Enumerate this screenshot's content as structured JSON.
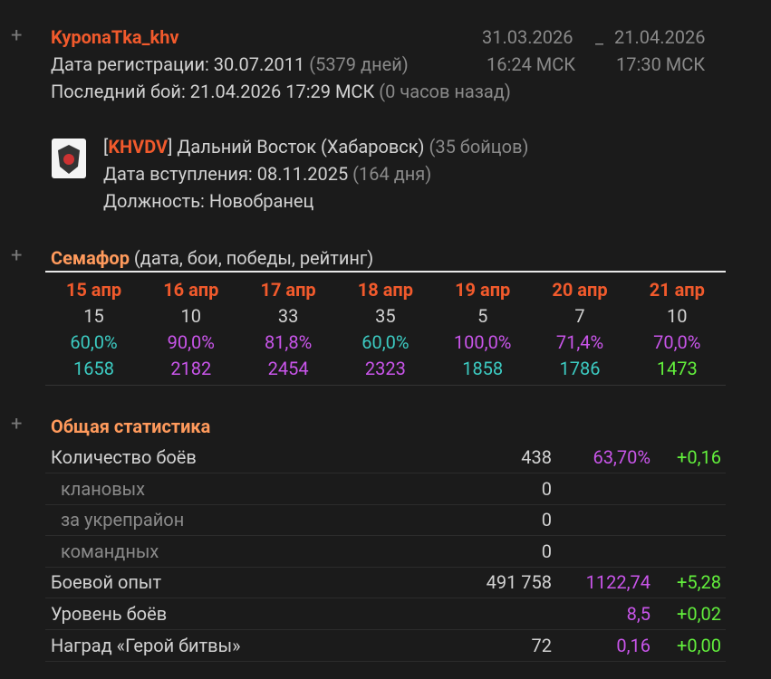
{
  "player": {
    "toggle": "+",
    "name": "KyponaTka_khv",
    "period": {
      "from": "31.03.2026",
      "separator": "_",
      "to": "21.04.2026",
      "from_time": "16:24 МСК",
      "to_time": "17:30 МСК"
    },
    "registration": {
      "text": "Дата регистрации: 30.07.2011",
      "days": "(5379 дней)"
    },
    "last_battle": {
      "text": "Последний бой: 21.04.2026 17:29 МСК",
      "ago": "(0 часов назад)"
    }
  },
  "clan": {
    "open": "[",
    "tag": "KHVDV",
    "close": "]",
    "name": "Дальний Восток (Хабаровск)",
    "members": "(35 бойцов)",
    "joined": {
      "text": "Дата вступления: 08.11.2025",
      "days": "(164 дня)"
    },
    "role": "Должность: Новобранец"
  },
  "semaphore": {
    "toggle": "+",
    "title": "Семафор",
    "subtitle": "(дата, бои, победы, рейтинг)",
    "days": [
      {
        "date": "15 апр",
        "battles": "15",
        "wins": "60,0%",
        "wins_color": "#3ccbc2",
        "rating": "1658",
        "rating_color": "#3ccbc2"
      },
      {
        "date": "16 апр",
        "battles": "10",
        "wins": "90,0%",
        "wins_color": "#c955ea",
        "rating": "2182",
        "rating_color": "#c955ea"
      },
      {
        "date": "17 апр",
        "battles": "33",
        "wins": "81,8%",
        "wins_color": "#c955ea",
        "rating": "2454",
        "rating_color": "#c955ea"
      },
      {
        "date": "18 апр",
        "battles": "35",
        "wins": "60,0%",
        "wins_color": "#3ccbc2",
        "rating": "2323",
        "rating_color": "#c955ea"
      },
      {
        "date": "19 апр",
        "battles": "5",
        "wins": "100,0%",
        "wins_color": "#c955ea",
        "rating": "1858",
        "rating_color": "#3ccbc2"
      },
      {
        "date": "20 апр",
        "battles": "7",
        "wins": "71,4%",
        "wins_color": "#c955ea",
        "rating": "1786",
        "rating_color": "#3ccbc2"
      },
      {
        "date": "21 апр",
        "battles": "10",
        "wins": "70,0%",
        "wins_color": "#c955ea",
        "rating": "1473",
        "rating_color": "#62ef3c"
      }
    ]
  },
  "stats": {
    "toggle": "+",
    "title": "Общая статистика",
    "rows": [
      {
        "label": "Количество боёв",
        "value": "438",
        "percent": "63,70%",
        "delta": "+0,16"
      },
      {
        "label": "клановых",
        "value": "0",
        "indent": true
      },
      {
        "label": "за укрепрайон",
        "value": "0",
        "indent": true
      },
      {
        "label": "командных",
        "value": "0",
        "indent": true
      },
      {
        "label": "Боевой опыт",
        "value": "491 758",
        "percent": "1122,74",
        "delta": "+5,28"
      },
      {
        "label": "Уровень боёв",
        "percent": "8,5",
        "delta": "+0,02"
      },
      {
        "label": "Наград «Герой битвы»",
        "value": "72",
        "percent": "0,16",
        "delta": "+0,00"
      }
    ]
  }
}
